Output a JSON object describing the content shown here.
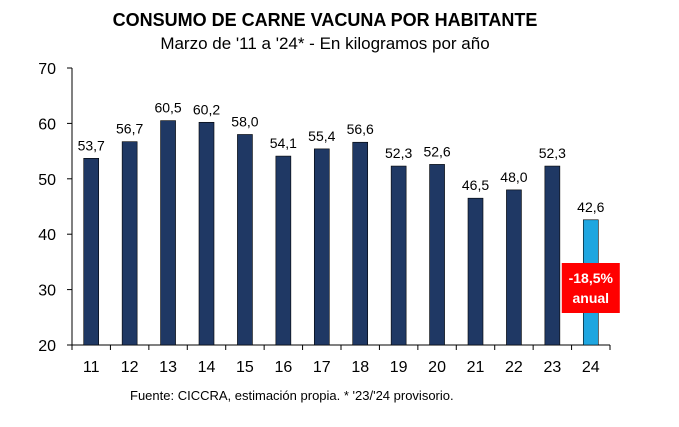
{
  "chart_data": {
    "type": "bar",
    "title": "CONSUMO DE CARNE VACUNA POR HABITANTE",
    "subtitle": "Marzo de '11 a '24* - En kilogramos por año",
    "categories": [
      "11",
      "12",
      "13",
      "14",
      "15",
      "16",
      "17",
      "18",
      "19",
      "20",
      "21",
      "22",
      "23",
      "24"
    ],
    "values": [
      53.7,
      56.7,
      60.5,
      60.2,
      58.0,
      54.1,
      55.4,
      56.6,
      52.3,
      52.6,
      46.5,
      48.0,
      52.3,
      42.6
    ],
    "value_labels": [
      "53,7",
      "56,7",
      "60,5",
      "60,2",
      "58,0",
      "54,1",
      "55,4",
      "56,6",
      "52,3",
      "52,6",
      "46,5",
      "48,0",
      "52,3",
      "42,6"
    ],
    "ylim": [
      20,
      70
    ],
    "yticks": [
      20,
      30,
      40,
      50,
      60,
      70
    ],
    "xlabel": "",
    "ylabel": "",
    "grid": false,
    "bar_color": "#1f3864",
    "highlight_color": "#1fa6e0",
    "highlight_index": 13,
    "annotation": {
      "line1": "-18,5%",
      "line2": "anual",
      "background": "#ff0000",
      "color": "#ffffff"
    }
  },
  "footnote": "Fuente: CICCRA, estimación propia. * '23/'24 provisorio."
}
